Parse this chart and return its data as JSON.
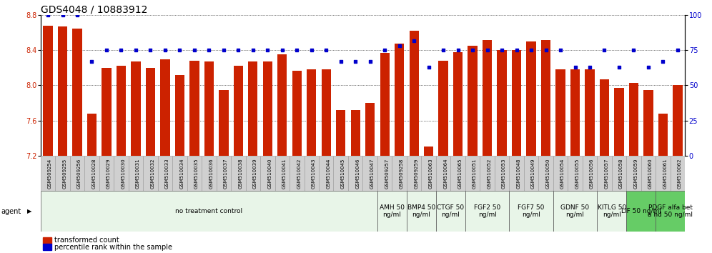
{
  "title": "GDS4048 / 10883912",
  "samples": [
    "GSM509254",
    "GSM509255",
    "GSM509256",
    "GSM510028",
    "GSM510029",
    "GSM510030",
    "GSM510031",
    "GSM510032",
    "GSM510033",
    "GSM510034",
    "GSM510035",
    "GSM510036",
    "GSM510037",
    "GSM510038",
    "GSM510039",
    "GSM510040",
    "GSM510041",
    "GSM510042",
    "GSM510043",
    "GSM510044",
    "GSM510045",
    "GSM510046",
    "GSM510047",
    "GSM509257",
    "GSM509258",
    "GSM509259",
    "GSM510063",
    "GSM510064",
    "GSM510065",
    "GSM510051",
    "GSM510052",
    "GSM510053",
    "GSM510048",
    "GSM510049",
    "GSM510050",
    "GSM510054",
    "GSM510055",
    "GSM510056",
    "GSM510057",
    "GSM510058",
    "GSM510059",
    "GSM510060",
    "GSM510061",
    "GSM510062"
  ],
  "bar_values": [
    8.68,
    8.67,
    8.65,
    7.68,
    8.2,
    8.22,
    8.27,
    8.2,
    8.3,
    8.12,
    8.28,
    8.27,
    7.95,
    8.22,
    8.27,
    8.27,
    8.35,
    8.17,
    8.18,
    8.18,
    7.72,
    7.72,
    7.8,
    8.37,
    8.48,
    8.62,
    7.3,
    8.28,
    8.38,
    8.45,
    8.52,
    8.4,
    8.4,
    8.5,
    8.52,
    8.18,
    8.18,
    8.18,
    8.07,
    7.97,
    8.03,
    7.95,
    7.68,
    8.0
  ],
  "percentile_values": [
    100,
    100,
    100,
    67,
    75,
    75,
    75,
    75,
    75,
    75,
    75,
    75,
    75,
    75,
    75,
    75,
    75,
    75,
    75,
    75,
    67,
    67,
    67,
    75,
    78,
    82,
    63,
    75,
    75,
    75,
    75,
    75,
    75,
    75,
    75,
    75,
    63,
    63,
    75,
    63,
    75,
    63,
    67,
    75
  ],
  "groups": [
    {
      "label": "no treatment control",
      "start": 0,
      "end": 23,
      "color": "#e8f5e8",
      "bright": false
    },
    {
      "label": "AMH 50\nng/ml",
      "start": 23,
      "end": 25,
      "color": "#e8f5e8",
      "bright": false
    },
    {
      "label": "BMP4 50\nng/ml",
      "start": 25,
      "end": 27,
      "color": "#e8f5e8",
      "bright": false
    },
    {
      "label": "CTGF 50\nng/ml",
      "start": 27,
      "end": 29,
      "color": "#e8f5e8",
      "bright": false
    },
    {
      "label": "FGF2 50\nng/ml",
      "start": 29,
      "end": 32,
      "color": "#e8f5e8",
      "bright": false
    },
    {
      "label": "FGF7 50\nng/ml",
      "start": 32,
      "end": 35,
      "color": "#e8f5e8",
      "bright": false
    },
    {
      "label": "GDNF 50\nng/ml",
      "start": 35,
      "end": 38,
      "color": "#e8f5e8",
      "bright": false
    },
    {
      "label": "KITLG 50\nng/ml",
      "start": 38,
      "end": 40,
      "color": "#e8f5e8",
      "bright": false
    },
    {
      "label": "LIF 50 ng/ml",
      "start": 40,
      "end": 42,
      "color": "#66cc66",
      "bright": true
    },
    {
      "label": "PDGF alfa bet\na hd 50 ng/ml",
      "start": 42,
      "end": 44,
      "color": "#66cc66",
      "bright": true
    }
  ],
  "ylim_left": [
    7.2,
    8.8
  ],
  "ylim_right": [
    0,
    100
  ],
  "yticks_left": [
    7.2,
    7.6,
    8.0,
    8.4,
    8.8
  ],
  "yticks_right": [
    0,
    25,
    50,
    75,
    100
  ],
  "bar_color": "#cc2200",
  "dot_color": "#0000cc",
  "title_fontsize": 10,
  "axis_fontsize": 7,
  "legend_fontsize": 7,
  "agent_fontsize": 6.5,
  "sample_fontsize": 5
}
